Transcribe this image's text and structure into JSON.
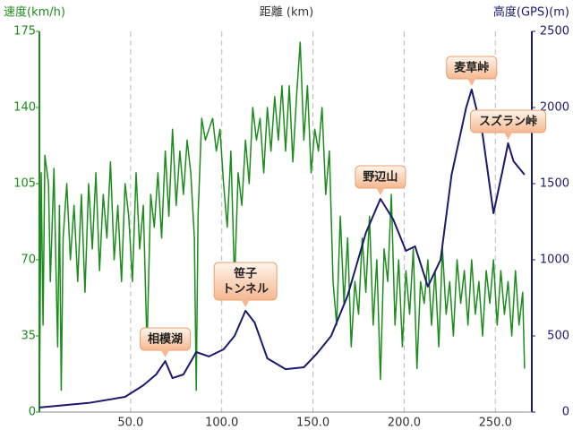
{
  "chart_data": {
    "type": "line",
    "xlabel": "距離 (km)",
    "ylabel": "速度(km/h)",
    "y2label": "高度(GPS)(m)",
    "xlim": [
      0,
      270
    ],
    "ylim": [
      0,
      175
    ],
    "y2lim": [
      0,
      2500
    ],
    "xticks": [
      {
        "value": 50,
        "label": "50.0"
      },
      {
        "value": 100,
        "label": "100.0"
      },
      {
        "value": 150,
        "label": "150.0"
      },
      {
        "value": 200,
        "label": "200.0"
      },
      {
        "value": 250,
        "label": "250.0"
      }
    ],
    "yticks": [
      0,
      35,
      70,
      105,
      140,
      175
    ],
    "y2ticks": [
      0,
      500,
      1000,
      1500,
      2000,
      2500
    ],
    "grid": true,
    "series": [
      {
        "color": "#1c8c1c",
        "axis": "y",
        "x": [
          0,
          1,
          2,
          3,
          5,
          6,
          8,
          9,
          10,
          11,
          12,
          13,
          15,
          17,
          19,
          21,
          23,
          25,
          27,
          29,
          31,
          33,
          35,
          37,
          39,
          41,
          43,
          45,
          47,
          49,
          51,
          53,
          55,
          57,
          59,
          61,
          63,
          65,
          67,
          69,
          71,
          73,
          75,
          77,
          79,
          81,
          83,
          85,
          86,
          87,
          89,
          91,
          93,
          95,
          97,
          99,
          101,
          103,
          105,
          107,
          109,
          111,
          113,
          115,
          117,
          119,
          121,
          123,
          125,
          127,
          129,
          131,
          133,
          135,
          137,
          139,
          141,
          143,
          145,
          147,
          149,
          151,
          153,
          155,
          157,
          159,
          161,
          163,
          165,
          167,
          169,
          171,
          173,
          175,
          177,
          179,
          181,
          183,
          185,
          187,
          189,
          191,
          193,
          195,
          197,
          199,
          201,
          203,
          205,
          207,
          209,
          211,
          213,
          215,
          217,
          219,
          221,
          223,
          225,
          227,
          229,
          231,
          233,
          235,
          237,
          239,
          241,
          243,
          245,
          247,
          249,
          251,
          253,
          255,
          257,
          259,
          261,
          263,
          265,
          266
        ],
        "values": [
          0,
          110,
          40,
          118,
          105,
          60,
          112,
          70,
          30,
          95,
          10,
          80,
          105,
          70,
          95,
          60,
          100,
          55,
          105,
          75,
          110,
          65,
          100,
          80,
          115,
          70,
          95,
          60,
          105,
          90,
          60,
          110,
          75,
          95,
          30,
          100,
          85,
          110,
          80,
          120,
          90,
          130,
          95,
          120,
          100,
          125,
          110,
          80,
          10,
          90,
          135,
          125,
          130,
          135,
          120,
          130,
          105,
          85,
          120,
          60,
          110,
          95,
          125,
          105,
          140,
          125,
          135,
          110,
          140,
          120,
          145,
          125,
          150,
          120,
          150,
          115,
          145,
          170,
          125,
          150,
          110,
          130,
          120,
          140,
          100,
          120,
          60,
          40,
          90,
          50,
          80,
          30,
          60,
          45,
          80,
          55,
          90,
          40,
          70,
          15,
          75,
          60,
          100,
          40,
          70,
          30,
          65,
          45,
          75,
          20,
          60,
          50,
          70,
          40,
          65,
          30,
          75,
          45,
          60,
          35,
          70,
          50,
          65,
          40,
          70,
          45,
          60,
          35,
          65,
          50,
          70,
          40,
          65,
          45,
          60,
          35,
          65,
          40,
          55,
          20
        ]
      },
      {
        "color": "#1a1a6e",
        "axis": "y2",
        "x": [
          0,
          27,
          47,
          57,
          64,
          69,
          73,
          79,
          86,
          93,
          101,
          107,
          113,
          118,
          125,
          135,
          145,
          152,
          160,
          169,
          179,
          187,
          194,
          201,
          206,
          213,
          220,
          226,
          234,
          237,
          243,
          249,
          254,
          257,
          260,
          266
        ],
        "values": [
          30,
          60,
          100,
          176,
          247,
          335,
          223,
          247,
          394,
          365,
          412,
          500,
          665,
          588,
          353,
          282,
          294,
          382,
          500,
          765,
          1176,
          1400,
          1265,
          1059,
          1088,
          824,
          1000,
          1559,
          2000,
          2118,
          1824,
          1306,
          1588,
          1765,
          1647,
          1559
        ]
      }
    ],
    "annotations": [
      {
        "text": [
          "相模湖"
        ],
        "x": 69,
        "y": 335
      },
      {
        "text": [
          "笹子",
          "トンネル"
        ],
        "x": 113,
        "y": 665
      },
      {
        "text": [
          "野辺山"
        ],
        "x": 187,
        "y": 1400
      },
      {
        "text": [
          "麦草峠"
        ],
        "x": 237,
        "y": 2118
      },
      {
        "text": [
          "スズラン峠"
        ],
        "x": 257,
        "y": 1765
      }
    ]
  }
}
